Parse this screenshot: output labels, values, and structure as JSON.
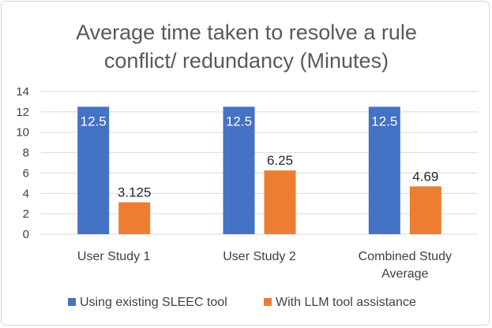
{
  "chart_data": {
    "type": "bar",
    "title_lines": [
      "Average time taken to resolve a rule",
      "conflict/ redundancy (Minutes)"
    ],
    "categories": [
      [
        "User Study 1"
      ],
      [
        "User Study 2"
      ],
      [
        "Combined Study",
        "Average"
      ]
    ],
    "series": [
      {
        "name": "Using existing SLEEC tool",
        "color": "#4472c4",
        "values": [
          12.5,
          12.5,
          12.5
        ],
        "labels": [
          "12.5",
          "12.5",
          "12.5"
        ],
        "label_position": "inside-top"
      },
      {
        "name": "With LLM tool assistance",
        "color": "#ed7d31",
        "values": [
          3.125,
          6.25,
          4.69
        ],
        "labels": [
          "3.125",
          "6.25",
          "4.69"
        ],
        "label_position": "outside-top"
      }
    ],
    "ylim": [
      0,
      14
    ],
    "yticks": [
      0,
      2,
      4,
      6,
      8,
      10,
      12,
      14
    ],
    "grid": true,
    "legend": "bottom",
    "xlabel": "",
    "ylabel": ""
  }
}
